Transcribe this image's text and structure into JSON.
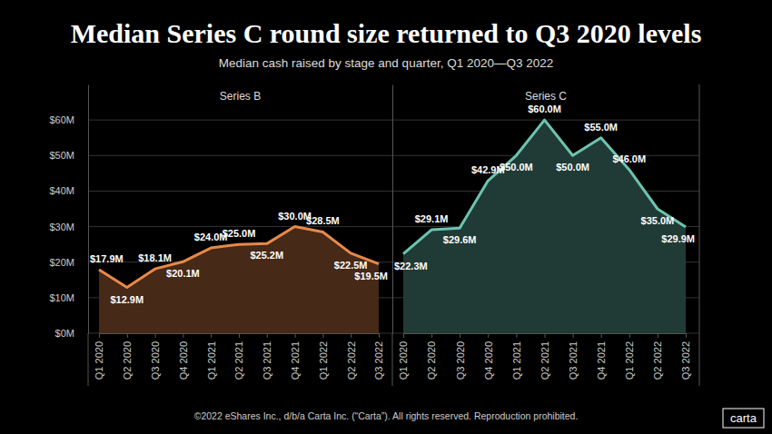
{
  "title": "Median Series C round size returned to Q3 2020 levels",
  "subtitle": "Median cash raised by stage and quarter, Q1 2020—Q3 2022",
  "footer": "©2022 eShares Inc., d/b/a Carta Inc. (“Carta”). All rights reserved. Reproduction prohibited.",
  "logo": "carta",
  "chart_data": [
    {
      "type": "area",
      "title": "Series B",
      "categories": [
        "Q1 2020",
        "Q2 2020",
        "Q3 2020",
        "Q4 2020",
        "Q1 2021",
        "Q2 2021",
        "Q3 2021",
        "Q4 2021",
        "Q1 2022",
        "Q2 2022",
        "Q3 2022"
      ],
      "values": [
        17.9,
        12.9,
        18.1,
        20.1,
        24.0,
        25.0,
        25.2,
        30.0,
        28.5,
        22.5,
        19.5
      ],
      "value_labels": [
        "$17.9M",
        "$12.9M",
        "$18.1M",
        "$20.1M",
        "$24.0M",
        "$25.0M",
        "$25.2M",
        "$30.0M",
        "$28.5M",
        "$22.5M",
        "$19.5M"
      ],
      "color": "#e8894a",
      "ylim": [
        0,
        70
      ],
      "yticks": [
        {
          "value": 0,
          "label": "$0M"
        },
        {
          "value": 10,
          "label": "$10M"
        },
        {
          "value": 20,
          "label": "$20M"
        },
        {
          "value": 30,
          "label": "$30M"
        },
        {
          "value": 40,
          "label": "$40M"
        },
        {
          "value": 50,
          "label": "$50M"
        },
        {
          "value": 60,
          "label": "$60M"
        }
      ],
      "grid": true,
      "data_labels": true
    },
    {
      "type": "area",
      "title": "Series C",
      "categories": [
        "Q1 2020",
        "Q2 2020",
        "Q3 2020",
        "Q4 2020",
        "Q1 2021",
        "Q2 2021",
        "Q3 2021",
        "Q4 2021",
        "Q1 2022",
        "Q2 2022",
        "Q3 2022"
      ],
      "values": [
        22.3,
        29.1,
        29.6,
        42.9,
        50.0,
        60.0,
        50.0,
        55.0,
        46.0,
        35.0,
        29.9
      ],
      "value_labels": [
        "$22.3M",
        "$29.1M",
        "$29.6M",
        "$42.9M",
        "$50.0M",
        "$60.0M",
        "$50.0M",
        "$55.0M",
        "$46.0M",
        "$35.0M",
        "$29.9M"
      ],
      "color": "#6cc4b0",
      "ylim": [
        0,
        70
      ],
      "yticks": [
        0,
        10,
        20,
        30,
        40,
        50,
        60
      ],
      "grid": true,
      "data_labels": true,
      "tick_labels": "x"
    }
  ]
}
